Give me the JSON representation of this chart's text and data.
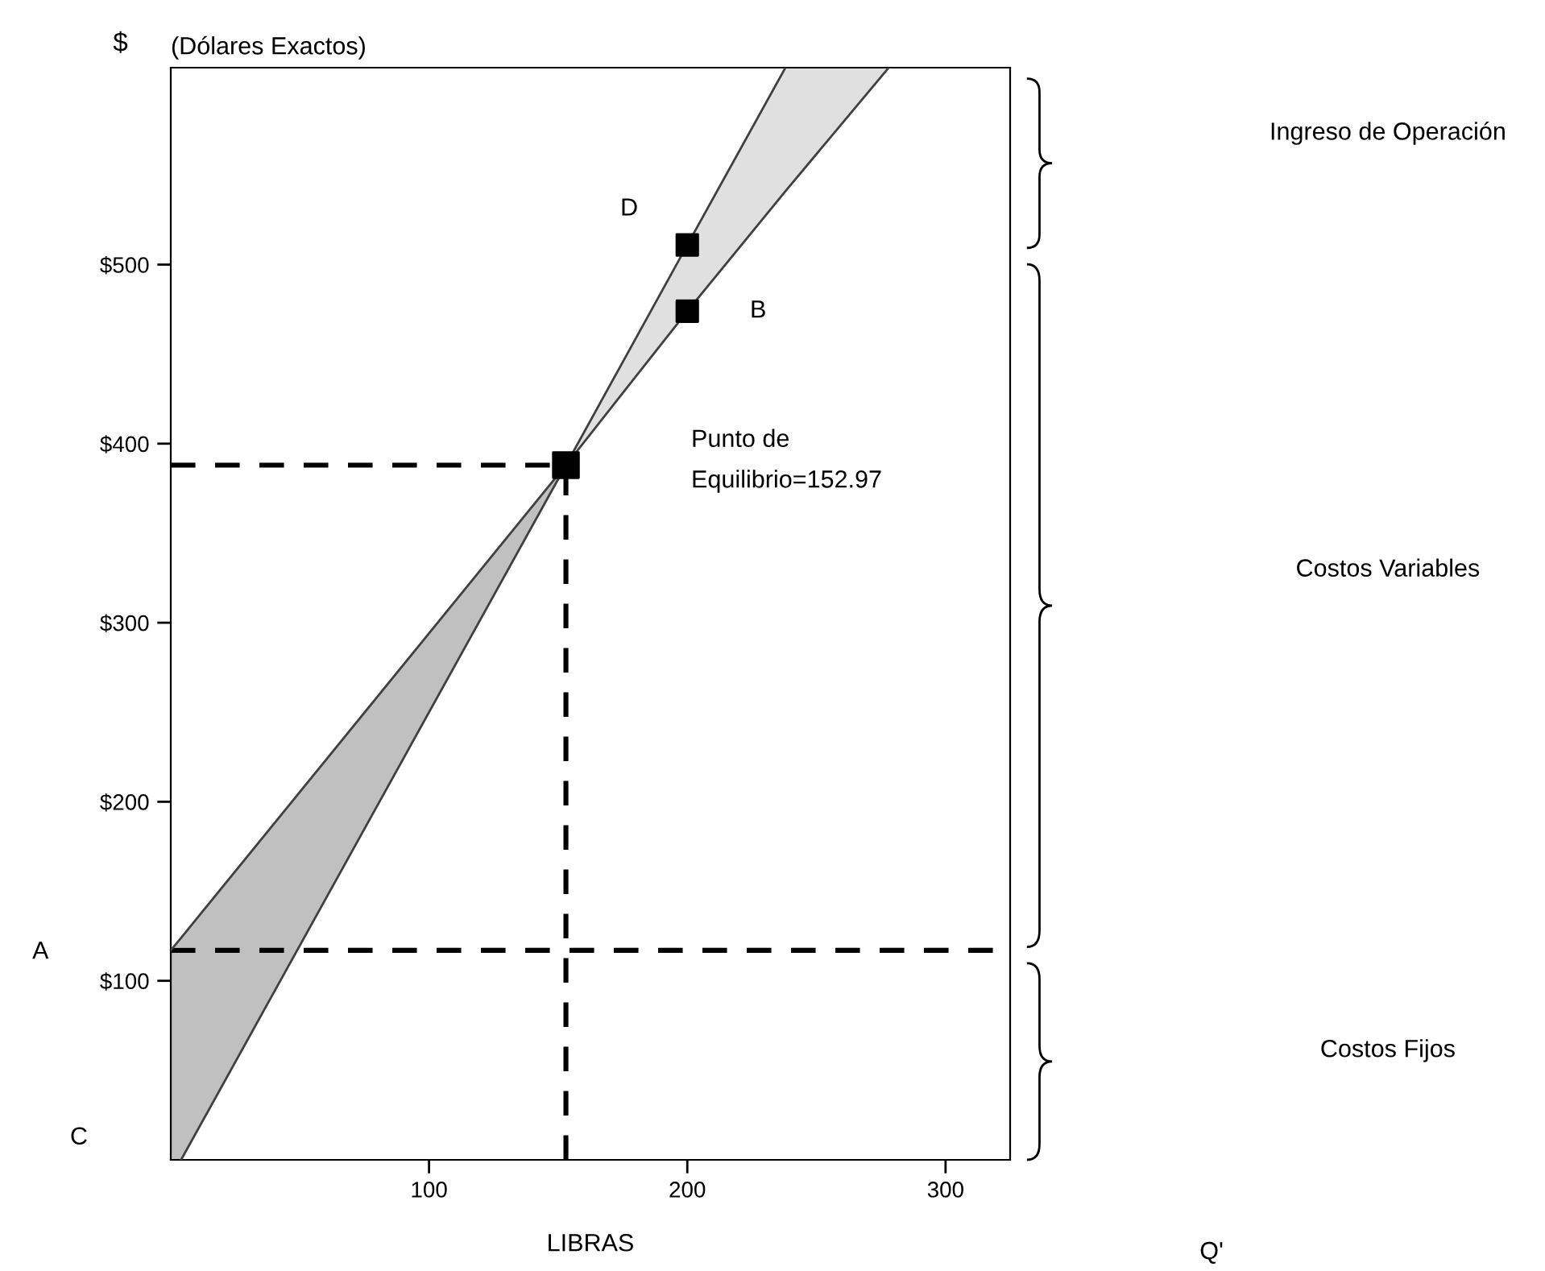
{
  "chart_data": {
    "type": "line",
    "title": "(Dólares Exactos)",
    "ylabel": "$",
    "xlabel": "LIBRAS",
    "xlim": [
      0,
      325
    ],
    "xticks": [
      100,
      200,
      300
    ],
    "ylim": [
      0,
      610
    ],
    "yticks": [
      {
        "value": 100,
        "label": "$100"
      },
      {
        "value": 200,
        "label": "$200"
      },
      {
        "value": 300,
        "label": "$300"
      },
      {
        "value": 400,
        "label": "$400"
      },
      {
        "value": 500,
        "label": "$500"
      }
    ],
    "grid": false,
    "legend": false,
    "series": [
      {
        "type": "line",
        "color": "#404040",
        "colors": [
          "#c0c0c0",
          "#c0c0c0",
          "#c0c0c0"
        ],
        "x": [
          0,
          4,
          153
        ],
        "values": [
          117,
          124,
          388
        ],
        "lower": [
          0,
          0,
          388
        ],
        "upper": [
          117,
          124,
          388
        ]
      },
      {
        "type": "line",
        "color": "#404040",
        "colors": [
          "#e0e0e0",
          "#e0e0e0",
          "#e0e0e0",
          "#e0e0e0"
        ],
        "x": [
          153,
          200,
          238,
          278
        ],
        "values": [
          388,
          474,
          541,
          610
        ],
        "lower": [
          388,
          474,
          541,
          610
        ],
        "upper": [
          388,
          511,
          610,
          610
        ]
      },
      {
        "color": "#404040",
        "x": [
          4,
          153,
          200,
          238
        ],
        "values": [
          0,
          388,
          511,
          610
        ]
      },
      {
        "color": "#000000",
        "line_style": "dashed",
        "x": [
          0,
          153
        ],
        "values": [
          388,
          388
        ]
      },
      {
        "color": "#000000",
        "line_style": "dashed",
        "x": [
          153,
          153
        ],
        "values": [
          0,
          388
        ]
      },
      {
        "type": "scatter",
        "color": "#000000",
        "marker": "square",
        "x": [
          153,
          200,
          200
        ],
        "values": [
          388,
          511,
          474
        ]
      }
    ],
    "ref_lines": [
      {
        "axis": "y",
        "value": 117,
        "color": "#000000",
        "line_style": "dashed"
      }
    ],
    "annotations": [
      {
        "text": "D",
        "x": 200,
        "y": 511
      },
      {
        "text": "B",
        "x": 200,
        "y": 474
      },
      "A",
      "C",
      "Punto de\nEquilibrio=152.97",
      "Ingreso de Operación",
      "Costos Variables",
      "Costos Fijos",
      "Q'"
    ]
  }
}
